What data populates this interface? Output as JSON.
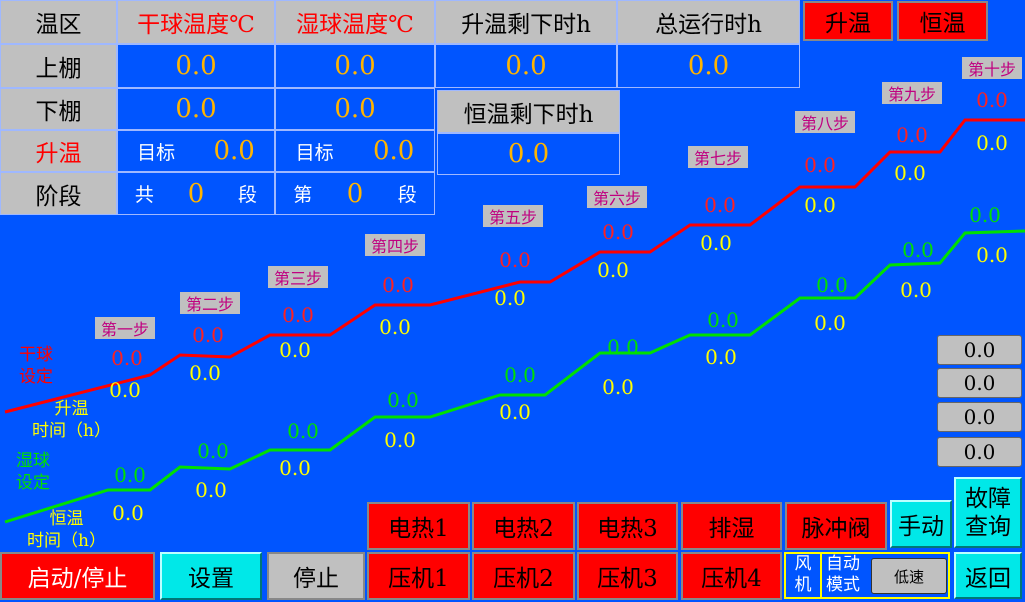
{
  "table": {
    "row_headers": [
      "温区",
      "上棚",
      "下棚",
      "升温",
      "阶段"
    ],
    "dry_header": "干球温度℃",
    "wet_header": "湿球温度℃",
    "heat_remain_header": "升温剩下时h",
    "total_run_header": "总运行时h",
    "hold_remain_header": "恒温剩下时h",
    "upper_dry": "0.0",
    "upper_wet": "0.0",
    "heat_remain": "0.0",
    "total_run": "0.0",
    "lower_dry": "0.0",
    "lower_wet": "0.0",
    "hold_remain": "0.0",
    "target_label": "目标",
    "target_dry": "0.0",
    "target_wet": "0.0",
    "total_label": "共",
    "total_stages": "0",
    "stage_unit": "段",
    "current_label": "第",
    "current_stage": "0"
  },
  "mode_buttons": {
    "heat": "升温",
    "hold": "恒温"
  },
  "legend": {
    "dry_set": "干球\n设定",
    "heat_time": "升温\n时间（h）",
    "wet_set": "湿球\n设定",
    "hold_time": "恒温\n时间（h）"
  },
  "steps": [
    {
      "label": "第一步",
      "dry": "0.0",
      "heat_time": "0.0",
      "wet": "0.0",
      "hold_time": "0.0"
    },
    {
      "label": "第二步",
      "dry": "0.0",
      "heat_time": "0.0",
      "wet": "0.0",
      "hold_time": "0.0"
    },
    {
      "label": "第三步",
      "dry": "0.0",
      "heat_time": "0.0",
      "wet": "0.0",
      "hold_time": "0.0"
    },
    {
      "label": "第四步",
      "dry": "0.0",
      "heat_time": "0.0",
      "wet": "0.0",
      "hold_time": "0.0"
    },
    {
      "label": "第五步",
      "dry": "0.0",
      "heat_time": "0.0",
      "wet": "0.0",
      "hold_time": "0.0"
    },
    {
      "label": "第六步",
      "dry": "0.0",
      "heat_time": "0.0",
      "wet": "0.0",
      "hold_time": "0.0"
    },
    {
      "label": "第七步",
      "dry": "0.0",
      "heat_time": "0.0",
      "wet": "0.0",
      "hold_time": "0.0"
    },
    {
      "label": "第八步",
      "dry": "0.0",
      "heat_time": "0.0",
      "wet": "0.0",
      "hold_time": "0.0"
    },
    {
      "label": "第九步",
      "dry": "0.0",
      "heat_time": "0.0",
      "wet": "0.0",
      "hold_time": "0.0"
    },
    {
      "label": "第十步",
      "dry": "0.0",
      "heat_time": "0.0",
      "wet": "0.0",
      "hold_time": "0.0"
    }
  ],
  "side_values": [
    "0.0",
    "0.0",
    "0.0",
    "0.0"
  ],
  "buttons": {
    "start_stop": "启动/停止",
    "settings": "设置",
    "stop": "停止",
    "heaters": [
      "电热1",
      "电热2",
      "电热3"
    ],
    "dehumidify": "排湿",
    "pulse_valve": "脉冲阀",
    "compressors": [
      "压机1",
      "压机2",
      "压机3",
      "压机4"
    ],
    "manual": "手动",
    "fault_query": "故障\n查询",
    "back": "返回",
    "fan": "风\n机",
    "auto_mode": "自动\n模式",
    "fan_speed": "低速"
  },
  "colors": {
    "background": "#0055ff",
    "dry_line": "#ff0000",
    "wet_line": "#00e000",
    "value": "#ffb400",
    "active": "#ff0000",
    "cyan": "#00e8e8"
  }
}
